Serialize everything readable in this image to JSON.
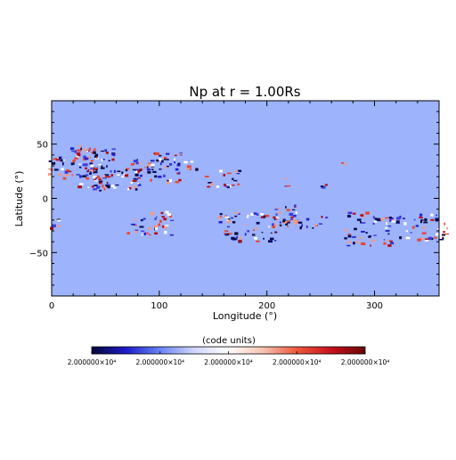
{
  "chart_data": {
    "type": "heatmap",
    "title": "Np at r = 1.00Rs",
    "xlabel": "Longitude (°)",
    "ylabel": "Latitude (°)",
    "xlim": [
      0,
      360
    ],
    "ylim": [
      -90,
      90
    ],
    "x_ticks": [
      0,
      100,
      200,
      300
    ],
    "y_ticks": [
      -50,
      0,
      50
    ],
    "background_value_color": "#9db3fb",
    "colorbar": {
      "label": "(code units)",
      "tick_labels": [
        "2.000000×10⁴",
        "2.000000×10⁴",
        "2.000000×10⁴",
        "2.000000×10⁴",
        "2.000000×10⁴"
      ],
      "colors": [
        "#07063a",
        "#1b1ac9",
        "#6a83f2",
        "#cfd6fb",
        "#ffffff",
        "#f7c3b4",
        "#f0583c",
        "#c8101c",
        "#6a0608"
      ]
    },
    "clusters": [
      {
        "lon": 8,
        "lat": 28,
        "w": 18,
        "h": 10,
        "n": 25
      },
      {
        "lon": 30,
        "lat": 32,
        "w": 12,
        "h": 14,
        "n": 35
      },
      {
        "lon": 42,
        "lat": 28,
        "w": 16,
        "h": 22,
        "n": 60
      },
      {
        "lon": 62,
        "lat": 18,
        "w": 22,
        "h": 10,
        "n": 45
      },
      {
        "lon": 85,
        "lat": 30,
        "w": 10,
        "h": 8,
        "n": 15
      },
      {
        "lon": 105,
        "lat": 28,
        "w": 16,
        "h": 14,
        "n": 40
      },
      {
        "lon": 128,
        "lat": 30,
        "w": 8,
        "h": 4,
        "n": 6
      },
      {
        "lon": 160,
        "lat": 18,
        "w": 16,
        "h": 8,
        "n": 22
      },
      {
        "lon": 222,
        "lat": 15,
        "w": 6,
        "h": 4,
        "n": 4
      },
      {
        "lon": 255,
        "lat": 13,
        "w": 4,
        "h": 3,
        "n": 3
      },
      {
        "lon": 272,
        "lat": 33,
        "w": 3,
        "h": 2,
        "n": 2
      },
      {
        "lon": 3,
        "lat": -23,
        "w": 4,
        "h": 5,
        "n": 6
      },
      {
        "lon": 80,
        "lat": -26,
        "w": 10,
        "h": 8,
        "n": 12
      },
      {
        "lon": 98,
        "lat": -22,
        "w": 14,
        "h": 12,
        "n": 25
      },
      {
        "lon": 183,
        "lat": -27,
        "w": 28,
        "h": 14,
        "n": 60
      },
      {
        "lon": 215,
        "lat": -17,
        "w": 18,
        "h": 10,
        "n": 35
      },
      {
        "lon": 242,
        "lat": -23,
        "w": 14,
        "h": 8,
        "n": 12
      },
      {
        "lon": 295,
        "lat": -28,
        "w": 22,
        "h": 16,
        "n": 55
      },
      {
        "lon": 343,
        "lat": -27,
        "w": 26,
        "h": 12,
        "n": 45
      }
    ]
  }
}
